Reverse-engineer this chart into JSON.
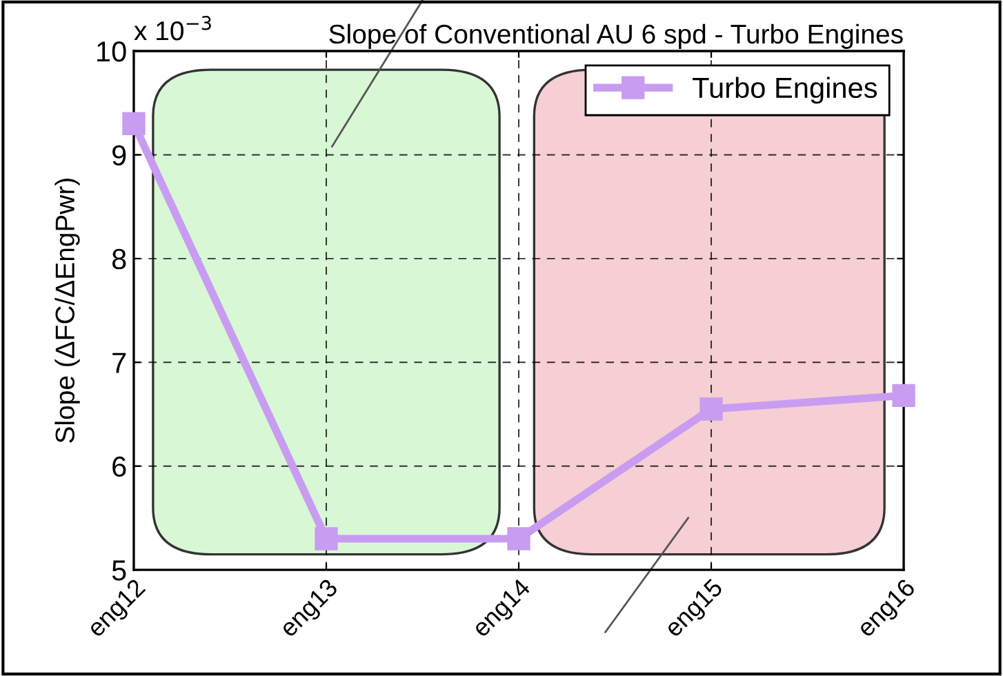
{
  "chart_data": {
    "type": "line",
    "title": "Slope of Conventional AU 6 spd - Turbo Engines",
    "ylabel": "Slope (ΔFC/ΔEngPwr)",
    "annotations": [
      "x 10$^{−3}$"
    ],
    "categories": [
      "eng12",
      "eng13",
      "eng14",
      "eng15",
      "eng16"
    ],
    "series": [
      {
        "name": "Turbo Engines",
        "color": "#c89cf0",
        "values": [
          9.3,
          5.3,
          5.3,
          6.55,
          6.68
        ]
      }
    ],
    "ylim": [
      5,
      10
    ],
    "yticks": [
      5,
      6,
      7,
      8,
      9,
      10
    ],
    "grid": true,
    "legend": "top right",
    "marker": "square",
    "line_style": "solid"
  }
}
